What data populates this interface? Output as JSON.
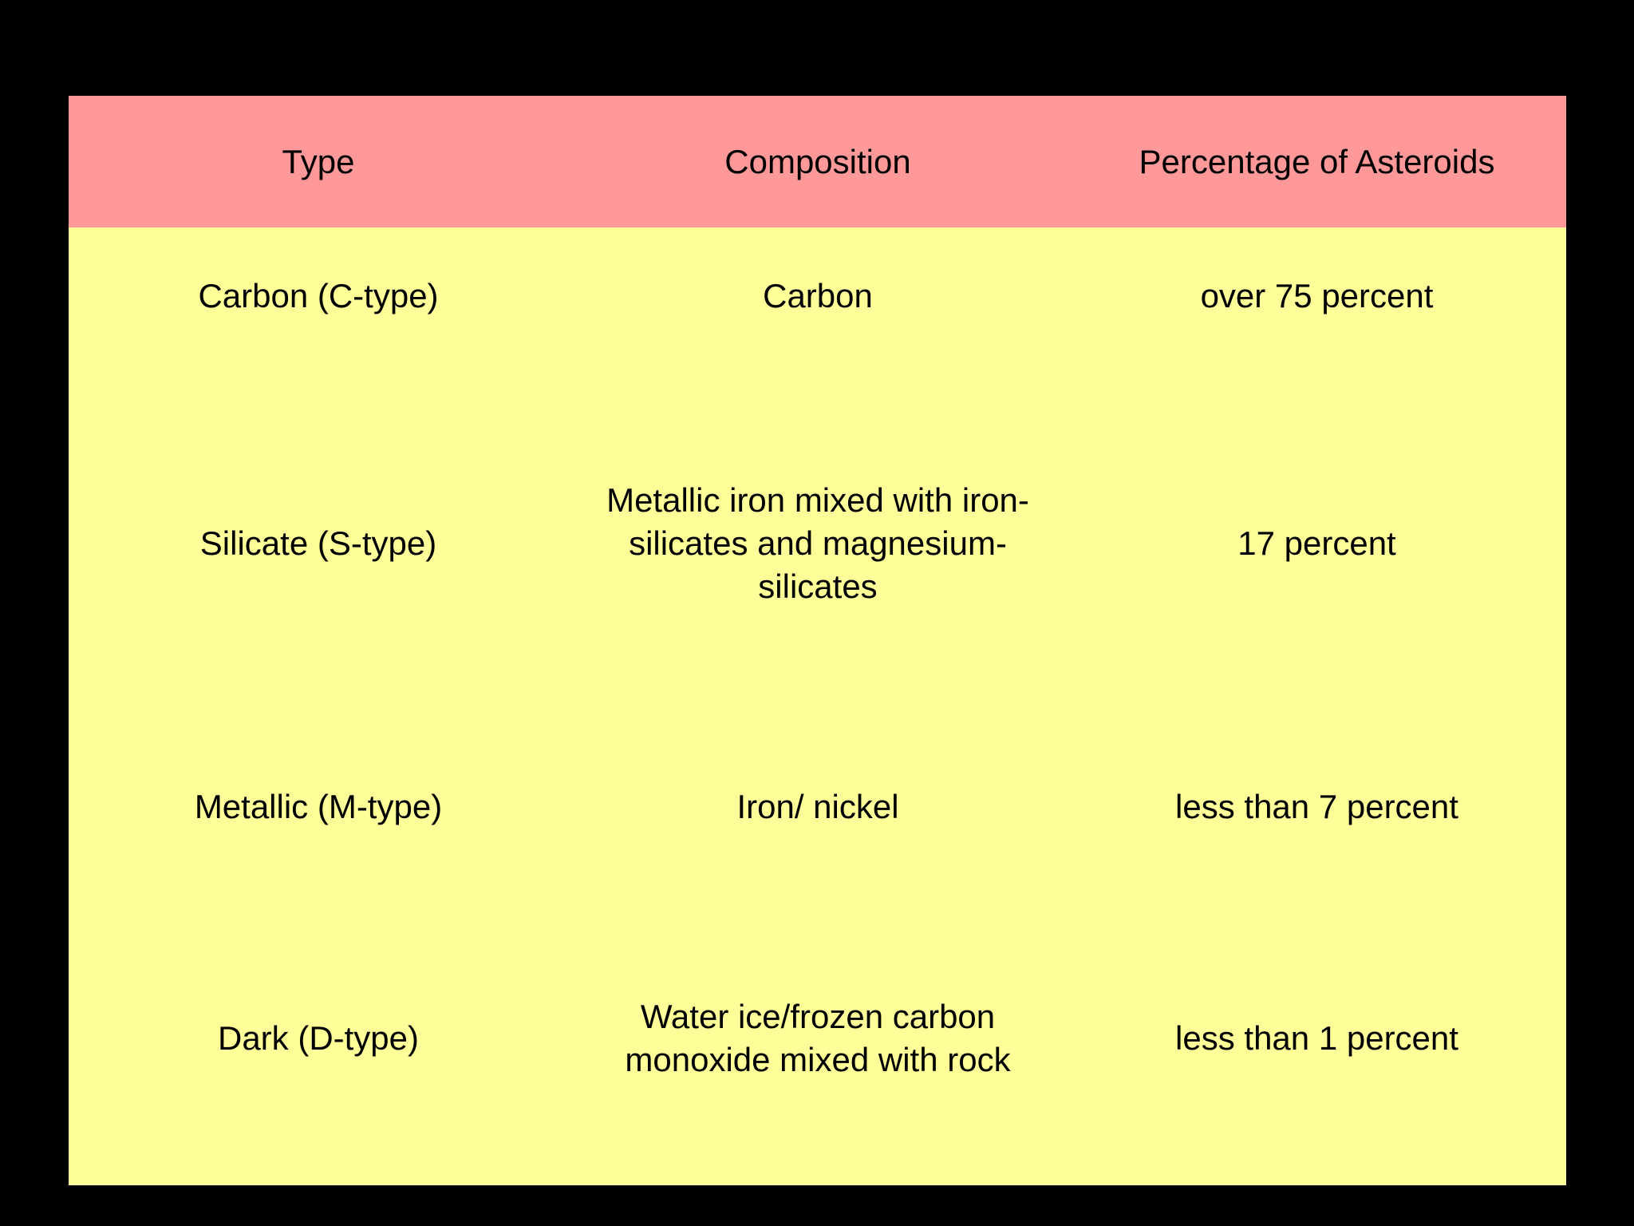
{
  "colors": {
    "background": "#000000",
    "header_fill": "#ff9999",
    "body_fill": "#ffff99",
    "text": "#000000"
  },
  "table": {
    "headers": [
      "Type",
      "Composition",
      "Percentage of Asteroids"
    ],
    "rows": [
      [
        "Carbon (C-type)",
        "Carbon",
        "over 75 percent"
      ],
      [
        "Silicate (S-type)",
        "Metallic iron mixed with iron-silicates and magnesium-silicates",
        "17 percent"
      ],
      [
        "Metallic (M-type)",
        "Iron/ nickel",
        "less than 7 percent"
      ],
      [
        "Dark (D-type)",
        "Water ice/frozen carbon monoxide mixed with rock",
        "less than 1 percent"
      ]
    ]
  }
}
